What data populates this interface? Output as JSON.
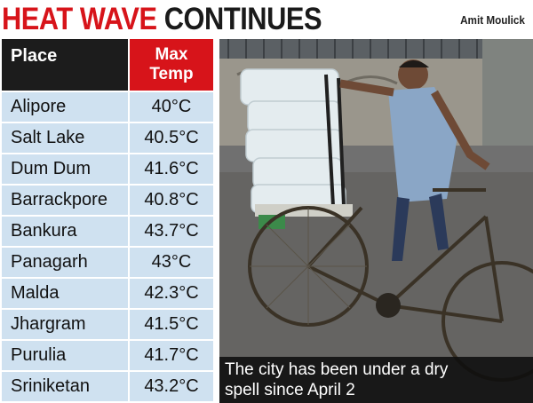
{
  "headline": {
    "part1": "HEAT WAVE ",
    "part2": "CONTINUES"
  },
  "credit": "Amit Moulick",
  "table": {
    "header_place": "Place",
    "header_temp": "Max\nTemp",
    "rows": [
      {
        "place": "Alipore",
        "temp": "40°C"
      },
      {
        "place": "Salt Lake",
        "temp": "40.5°C"
      },
      {
        "place": "Dum Dum",
        "temp": "41.6°C"
      },
      {
        "place": "Barrackpore",
        "temp": "40.8°C"
      },
      {
        "place": "Bankura",
        "temp": "43.7°C"
      },
      {
        "place": "Panagarh",
        "temp": "43°C"
      },
      {
        "place": "Malda",
        "temp": "42.3°C"
      },
      {
        "place": "Jhargram",
        "temp": "41.5°C"
      },
      {
        "place": "Purulia",
        "temp": "41.7°C"
      },
      {
        "place": "Sriniketan",
        "temp": "43.2°C"
      }
    ]
  },
  "caption": {
    "line1": "The city has been under a dry",
    "line2": "spell since April 2"
  },
  "colors": {
    "accent_red": "#d7141a",
    "header_dark": "#1c1c1c",
    "cell_blue": "#cfe1f0"
  }
}
